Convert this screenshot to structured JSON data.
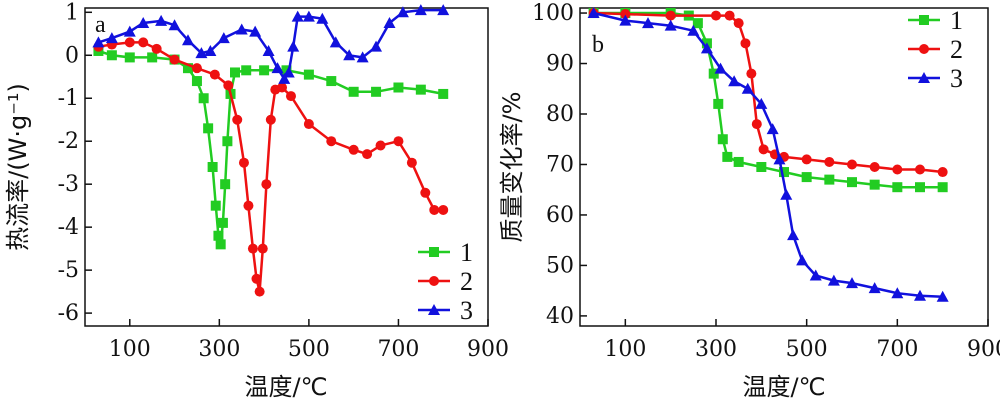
{
  "chart_data": [
    {
      "type": "line",
      "panel_label": "a",
      "xlabel": "温度/℃",
      "ylabel": "热流率/(W·g⁻¹)",
      "xlim": [
        0,
        900
      ],
      "ylim": [
        -6.3,
        1.1
      ],
      "xticks": [
        100,
        300,
        500,
        700,
        900
      ],
      "yticks": [
        1,
        0,
        -1,
        -2,
        -3,
        -4,
        -5,
        -6
      ],
      "grid": false,
      "legend_position": "bottom-right",
      "series": [
        {
          "name": "1",
          "color": "#22cc22",
          "marker": "square",
          "points": [
            [
              30,
              0.1
            ],
            [
              60,
              0.0
            ],
            [
              100,
              -0.05
            ],
            [
              150,
              -0.05
            ],
            [
              200,
              -0.1
            ],
            [
              230,
              -0.3
            ],
            [
              250,
              -0.6
            ],
            [
              265,
              -1.0
            ],
            [
              275,
              -1.7
            ],
            [
              285,
              -2.6
            ],
            [
              292,
              -3.5
            ],
            [
              298,
              -4.2
            ],
            [
              303,
              -4.4
            ],
            [
              308,
              -3.9
            ],
            [
              313,
              -3.0
            ],
            [
              318,
              -2.0
            ],
            [
              325,
              -0.9
            ],
            [
              335,
              -0.4
            ],
            [
              360,
              -0.35
            ],
            [
              400,
              -0.35
            ],
            [
              450,
              -0.35
            ],
            [
              500,
              -0.45
            ],
            [
              550,
              -0.6
            ],
            [
              600,
              -0.85
            ],
            [
              650,
              -0.85
            ],
            [
              700,
              -0.75
            ],
            [
              750,
              -0.8
            ],
            [
              800,
              -0.9
            ]
          ]
        },
        {
          "name": "2",
          "color": "#ee1111",
          "marker": "circle",
          "points": [
            [
              30,
              0.2
            ],
            [
              60,
              0.25
            ],
            [
              100,
              0.3
            ],
            [
              130,
              0.3
            ],
            [
              160,
              0.15
            ],
            [
              200,
              -0.1
            ],
            [
              250,
              -0.3
            ],
            [
              290,
              -0.45
            ],
            [
              320,
              -0.7
            ],
            [
              340,
              -1.5
            ],
            [
              355,
              -2.5
            ],
            [
              365,
              -3.5
            ],
            [
              375,
              -4.5
            ],
            [
              383,
              -5.2
            ],
            [
              390,
              -5.5
            ],
            [
              397,
              -4.5
            ],
            [
              405,
              -3.0
            ],
            [
              415,
              -1.5
            ],
            [
              425,
              -0.8
            ],
            [
              440,
              -0.75
            ],
            [
              460,
              -0.95
            ],
            [
              500,
              -1.6
            ],
            [
              550,
              -2.0
            ],
            [
              600,
              -2.2
            ],
            [
              630,
              -2.3
            ],
            [
              660,
              -2.1
            ],
            [
              700,
              -2.0
            ],
            [
              730,
              -2.5
            ],
            [
              760,
              -3.2
            ],
            [
              780,
              -3.6
            ],
            [
              800,
              -3.6
            ]
          ]
        },
        {
          "name": "3",
          "color": "#1111dd",
          "marker": "triangle",
          "points": [
            [
              30,
              0.3
            ],
            [
              60,
              0.4
            ],
            [
              100,
              0.55
            ],
            [
              130,
              0.75
            ],
            [
              170,
              0.8
            ],
            [
              200,
              0.7
            ],
            [
              230,
              0.35
            ],
            [
              260,
              0.05
            ],
            [
              280,
              0.1
            ],
            [
              310,
              0.4
            ],
            [
              350,
              0.6
            ],
            [
              380,
              0.55
            ],
            [
              410,
              0.1
            ],
            [
              430,
              -0.3
            ],
            [
              445,
              -0.55
            ],
            [
              455,
              -0.4
            ],
            [
              465,
              0.2
            ],
            [
              475,
              0.9
            ],
            [
              500,
              0.9
            ],
            [
              530,
              0.85
            ],
            [
              560,
              0.3
            ],
            [
              590,
              0.0
            ],
            [
              620,
              -0.05
            ],
            [
              650,
              0.2
            ],
            [
              680,
              0.75
            ],
            [
              710,
              1.0
            ],
            [
              750,
              1.05
            ],
            [
              800,
              1.05
            ]
          ]
        }
      ]
    },
    {
      "type": "line",
      "panel_label": "b",
      "xlabel": "温度/℃",
      "ylabel": "质量变化率/%",
      "xlim": [
        0,
        900
      ],
      "ylim": [
        38,
        101
      ],
      "xticks": [
        100,
        300,
        500,
        700,
        900
      ],
      "yticks": [
        100,
        90,
        80,
        70,
        60,
        50,
        40
      ],
      "grid": false,
      "legend_position": "top-right",
      "series": [
        {
          "name": "1",
          "color": "#22cc22",
          "marker": "square",
          "points": [
            [
              30,
              100
            ],
            [
              100,
              100
            ],
            [
              200,
              100
            ],
            [
              240,
              99.5
            ],
            [
              260,
              98
            ],
            [
              280,
              94
            ],
            [
              295,
              88
            ],
            [
              305,
              82
            ],
            [
              315,
              75
            ],
            [
              325,
              71.5
            ],
            [
              350,
              70.5
            ],
            [
              400,
              69.5
            ],
            [
              450,
              68.5
            ],
            [
              500,
              67.5
            ],
            [
              550,
              67
            ],
            [
              600,
              66.5
            ],
            [
              650,
              66
            ],
            [
              700,
              65.5
            ],
            [
              750,
              65.5
            ],
            [
              800,
              65.5
            ]
          ]
        },
        {
          "name": "2",
          "color": "#ee1111",
          "marker": "circle",
          "points": [
            [
              30,
              100
            ],
            [
              100,
              99.8
            ],
            [
              200,
              99.5
            ],
            [
              300,
              99.5
            ],
            [
              330,
              99.5
            ],
            [
              350,
              98
            ],
            [
              365,
              94
            ],
            [
              378,
              88
            ],
            [
              390,
              78
            ],
            [
              405,
              73
            ],
            [
              430,
              72
            ],
            [
              450,
              71.5
            ],
            [
              500,
              71
            ],
            [
              550,
              70.5
            ],
            [
              600,
              70
            ],
            [
              650,
              69.5
            ],
            [
              700,
              69
            ],
            [
              750,
              69
            ],
            [
              800,
              68.5
            ]
          ]
        },
        {
          "name": "3",
          "color": "#1111dd",
          "marker": "triangle",
          "points": [
            [
              30,
              100
            ],
            [
              100,
              98.5
            ],
            [
              150,
              98
            ],
            [
              200,
              97.5
            ],
            [
              250,
              96.5
            ],
            [
              280,
              93
            ],
            [
              310,
              89
            ],
            [
              340,
              86.5
            ],
            [
              370,
              85
            ],
            [
              400,
              82
            ],
            [
              425,
              77
            ],
            [
              440,
              71
            ],
            [
              455,
              64
            ],
            [
              470,
              56
            ],
            [
              490,
              51
            ],
            [
              520,
              48
            ],
            [
              560,
              47
            ],
            [
              600,
              46.5
            ],
            [
              650,
              45.5
            ],
            [
              700,
              44.5
            ],
            [
              750,
              44
            ],
            [
              800,
              43.8
            ]
          ]
        }
      ]
    }
  ]
}
